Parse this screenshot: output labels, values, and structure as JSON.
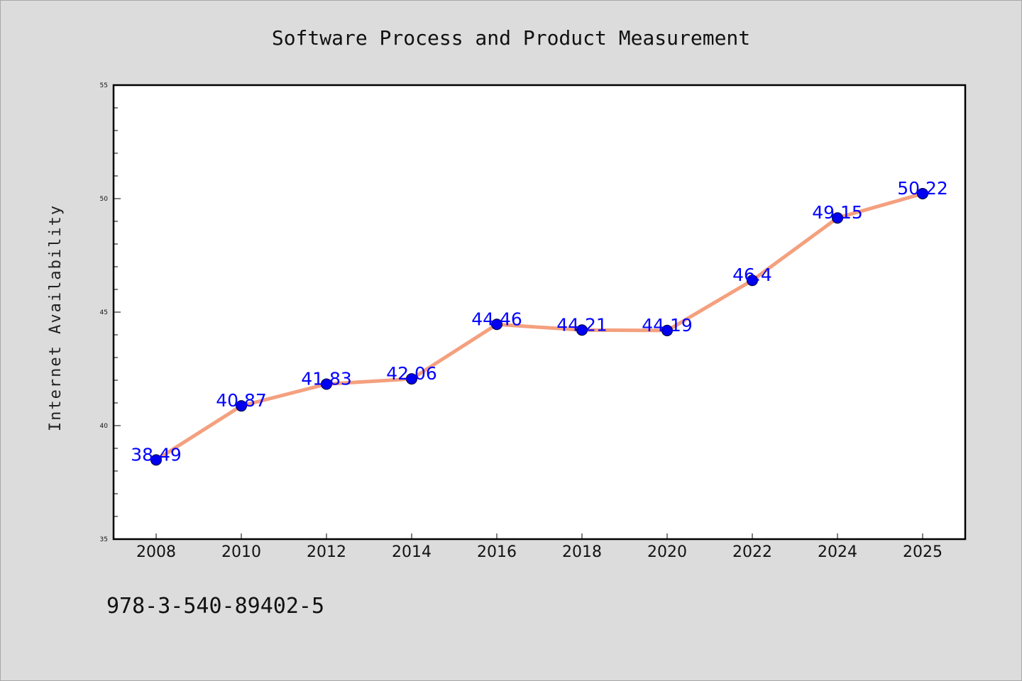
{
  "chart_data": {
    "type": "line",
    "title": "Software Process and Product Measurement",
    "xlabel": "",
    "ylabel": "Internet Availability",
    "categories": [
      "2008",
      "2010",
      "2012",
      "2014",
      "2016",
      "2018",
      "2020",
      "2022",
      "2024",
      "2025"
    ],
    "series": [
      {
        "values": [
          38.49,
          40.87,
          41.83,
          42.06,
          44.46,
          44.21,
          44.19,
          46.4,
          49.15,
          50.22
        ],
        "data_labels": [
          "38.49",
          "40.87",
          "41.83",
          "42.06",
          "44.46",
          "44.21",
          "44.19",
          "46.4",
          "49.15",
          "50.22"
        ],
        "line_color": "#f4a07f",
        "marker_color": "#0000ee"
      }
    ],
    "ylim": [
      35,
      55
    ],
    "yticks": [
      "35",
      "40",
      "45",
      "50",
      "55"
    ],
    "grid": false,
    "label_color": "#0000ff"
  },
  "footer": {
    "isbn": "978-3-540-89402-5"
  },
  "colors": {
    "background": "#dcdcdc",
    "plot_background": "#ffffff",
    "axis": "#000000"
  }
}
